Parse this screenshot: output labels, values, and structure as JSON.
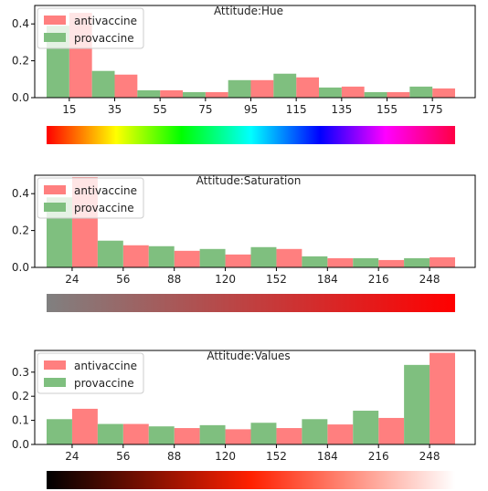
{
  "chart_data": [
    {
      "type": "bar",
      "title": "Attitude:Hue",
      "categories": [
        "15",
        "35",
        "55",
        "75",
        "95",
        "115",
        "135",
        "155",
        "175"
      ],
      "ylim": [
        0,
        0.5
      ],
      "yticks": [
        "0.0",
        "0.2",
        "0.4"
      ],
      "ytick_values": [
        0,
        0.2,
        0.4
      ],
      "legend": "upper-left",
      "colorbar": "hue",
      "series": [
        {
          "name": "antivaccine",
          "color": "#ff7f7f",
          "values": [
            0.46,
            0.125,
            0.04,
            0.03,
            0.095,
            0.11,
            0.06,
            0.03,
            0.05
          ]
        },
        {
          "name": "provaccine",
          "color": "#7fbf7f",
          "values": [
            0.39,
            0.145,
            0.04,
            0.03,
            0.095,
            0.13,
            0.055,
            0.03,
            0.06
          ]
        }
      ]
    },
    {
      "type": "bar",
      "title": "Attitude:Saturation",
      "categories": [
        "24",
        "56",
        "88",
        "120",
        "152",
        "184",
        "216",
        "248"
      ],
      "ylim": [
        0,
        0.5
      ],
      "yticks": [
        "0.0",
        "0.2",
        "0.4"
      ],
      "ytick_values": [
        0,
        0.2,
        0.4
      ],
      "legend": "upper-left",
      "colorbar": "saturation",
      "series": [
        {
          "name": "antivaccine",
          "color": "#ff7f7f",
          "values": [
            0.49,
            0.12,
            0.09,
            0.07,
            0.1,
            0.05,
            0.04,
            0.055
          ]
        },
        {
          "name": "provaccine",
          "color": "#7fbf7f",
          "values": [
            0.38,
            0.145,
            0.115,
            0.1,
            0.11,
            0.06,
            0.05,
            0.05
          ]
        }
      ]
    },
    {
      "type": "bar",
      "title": "Attitude:Values",
      "categories": [
        "24",
        "56",
        "88",
        "120",
        "152",
        "184",
        "216",
        "248"
      ],
      "ylim": [
        0,
        0.39
      ],
      "yticks": [
        "0.0",
        "0.1",
        "0.2",
        "0.3"
      ],
      "ytick_values": [
        0,
        0.1,
        0.2,
        0.3
      ],
      "legend": "upper-left",
      "colorbar": "value",
      "series": [
        {
          "name": "antivaccine",
          "color": "#ff7f7f",
          "values": [
            0.148,
            0.085,
            0.068,
            0.063,
            0.068,
            0.083,
            0.11,
            0.38
          ]
        },
        {
          "name": "provaccine",
          "color": "#7fbf7f",
          "values": [
            0.105,
            0.085,
            0.075,
            0.08,
            0.09,
            0.105,
            0.14,
            0.33
          ]
        }
      ]
    }
  ]
}
